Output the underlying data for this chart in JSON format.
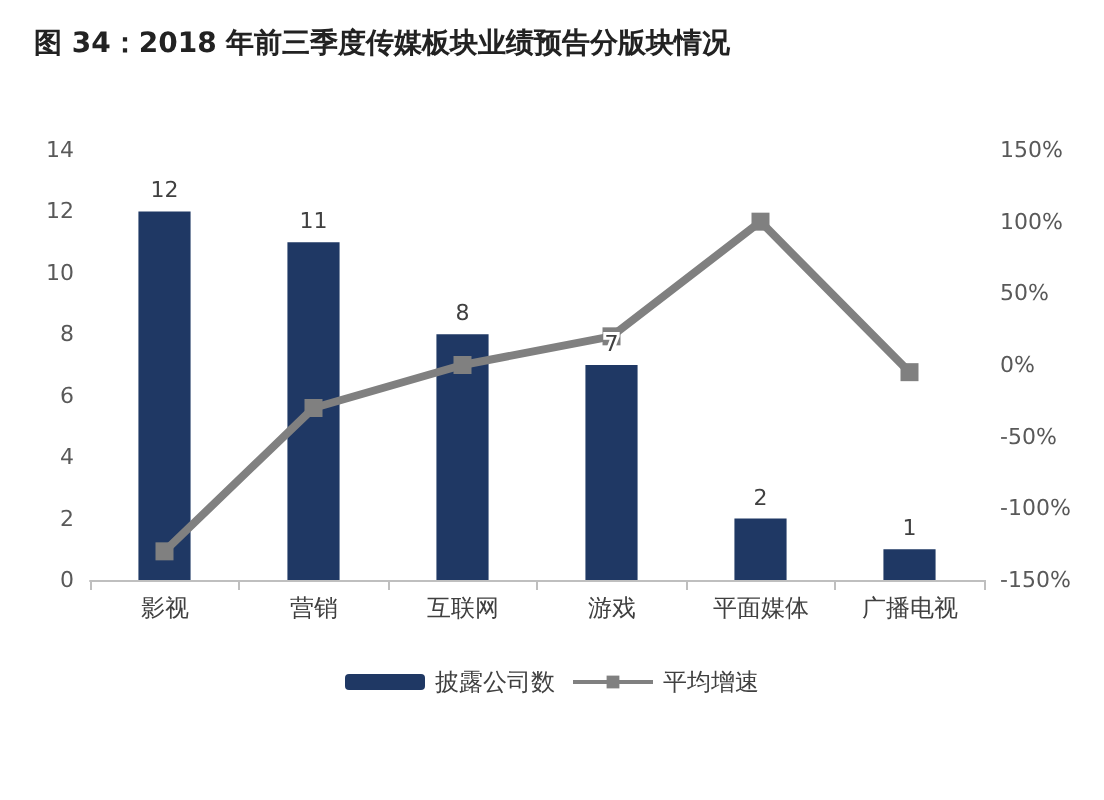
{
  "chart_data": {
    "type": "bar",
    "title": "图 34：2018 年前三季度传媒板块业绩预告分版块情况",
    "categories": [
      "影视",
      "营销",
      "互联网",
      "游戏",
      "平面媒体",
      "广播电视"
    ],
    "series": [
      {
        "name": "披露公司数",
        "color": "#1f3864",
        "values": [
          12,
          11,
          8,
          7,
          2,
          1
        ],
        "value_labels": [
          "12",
          "11",
          "8",
          "7",
          "2",
          "1"
        ]
      },
      {
        "name": "平均增速",
        "type": "line",
        "axis": "y2",
        "color": "#808080",
        "marker": "square",
        "values": [
          -130,
          -30,
          0,
          20,
          100,
          -5
        ]
      }
    ],
    "ylim": [
      0,
      14
    ],
    "yticks": [
      0,
      2,
      4,
      6,
      8,
      10,
      12,
      14
    ],
    "y2lim": [
      -150,
      150
    ],
    "y2ticks": [
      {
        "value": -150,
        "label": "-150%"
      },
      {
        "value": -100,
        "label": "-100%"
      },
      {
        "value": -50,
        "label": "-50%"
      },
      {
        "value": 0,
        "label": "0%"
      },
      {
        "value": 50,
        "label": "50%"
      },
      {
        "value": 100,
        "label": "100%"
      },
      {
        "value": 150,
        "label": "150%"
      }
    ],
    "grid": false,
    "legend": "bottom"
  }
}
